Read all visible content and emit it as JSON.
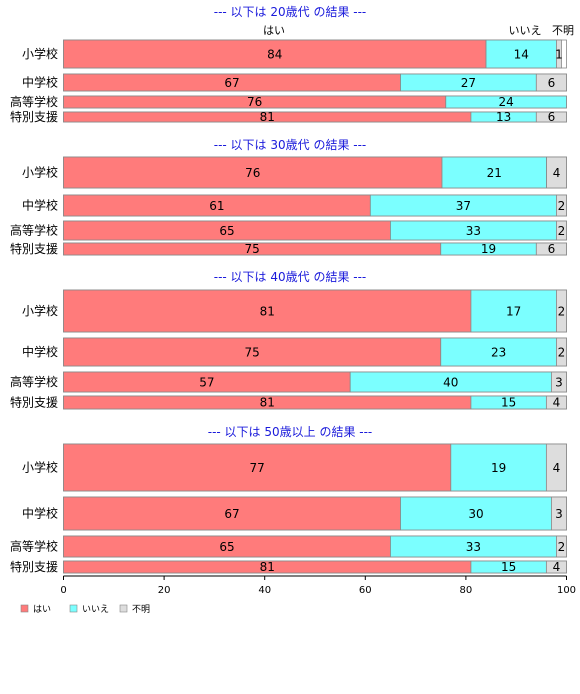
{
  "colors": {
    "hai": "#ff7b7b",
    "iie": "#7bffff",
    "fumei": "#dddddd",
    "title": "#1a1adb"
  },
  "column_headers": [
    "はい",
    "いいえ",
    "不明"
  ],
  "chart_data": {
    "type": "bar",
    "orientation": "horizontal",
    "stacked": true,
    "xlim": [
      0,
      100
    ],
    "xticks": [
      0,
      20,
      40,
      60,
      80,
      100
    ],
    "legend": {
      "position": "bottom-left",
      "entries": [
        "はい",
        "いいえ",
        "不明"
      ]
    },
    "groups": [
      {
        "title": "--- 以下は 20歳代 の結果 ---",
        "categories": [
          "小学校",
          "中学校",
          "高等学校",
          "特別支援"
        ],
        "series": [
          {
            "name": "はい",
            "values": [
              84,
              67,
              76,
              81
            ]
          },
          {
            "name": "いいえ",
            "values": [
              14,
              27,
              24,
              13
            ]
          },
          {
            "name": "不明",
            "values": [
              1,
              6,
              0,
              6
            ]
          }
        ]
      },
      {
        "title": "--- 以下は 30歳代 の結果 ---",
        "categories": [
          "小学校",
          "中学校",
          "高等学校",
          "特別支援"
        ],
        "series": [
          {
            "name": "はい",
            "values": [
              76,
              61,
              65,
              75
            ]
          },
          {
            "name": "いいえ",
            "values": [
              21,
              37,
              33,
              19
            ]
          },
          {
            "name": "不明",
            "values": [
              4,
              2,
              2,
              6
            ]
          }
        ]
      },
      {
        "title": "--- 以下は 40歳代 の結果 ---",
        "categories": [
          "小学校",
          "中学校",
          "高等学校",
          "特別支援"
        ],
        "series": [
          {
            "name": "はい",
            "values": [
              81,
              75,
              57,
              81
            ]
          },
          {
            "name": "いいえ",
            "values": [
              17,
              23,
              40,
              15
            ]
          },
          {
            "name": "不明",
            "values": [
              2,
              2,
              3,
              4
            ]
          }
        ]
      },
      {
        "title": "--- 以下は 50歳以上 の結果 ---",
        "categories": [
          "小学校",
          "中学校",
          "高等学校",
          "特別支援"
        ],
        "series": [
          {
            "name": "はい",
            "values": [
              77,
              67,
              65,
              81
            ]
          },
          {
            "name": "いいえ",
            "values": [
              19,
              30,
              33,
              15
            ]
          },
          {
            "name": "不明",
            "values": [
              4,
              3,
              2,
              4
            ]
          }
        ]
      }
    ]
  }
}
